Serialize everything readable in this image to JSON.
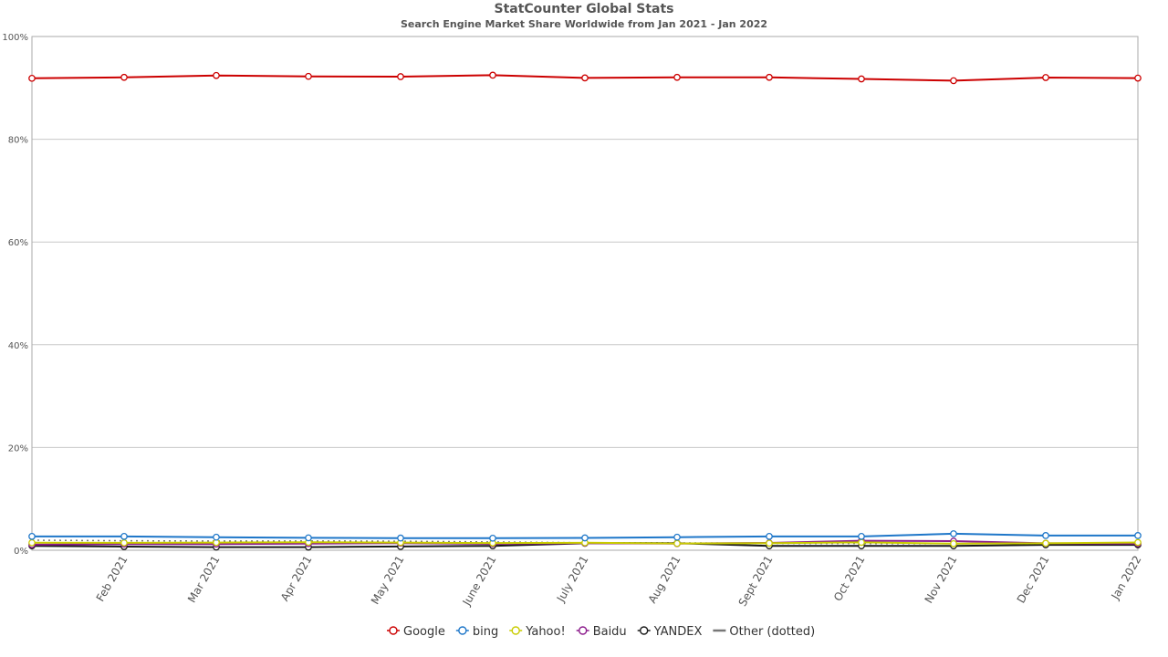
{
  "chart_data": {
    "type": "line",
    "title": "StatCounter Global Stats",
    "subtitle": "Search Engine Market Share Worldwide from Jan 2021 - Jan 2022",
    "x": [
      "Jan 2021",
      "Feb 2021",
      "Mar 2021",
      "Apr 2021",
      "May 2021",
      "June 2021",
      "July 2021",
      "Aug 2021",
      "Sept 2021",
      "Oct 2021",
      "Nov 2021",
      "Dec 2021",
      "Jan 2022"
    ],
    "x_tick_labels": [
      "",
      "Feb 2021",
      "Mar 2021",
      "Apr 2021",
      "May 2021",
      "June 2021",
      "July 2021",
      "Aug 2021",
      "Sept 2021",
      "Oct 2021",
      "Nov 2021",
      "Dec 2021",
      "Jan 2022"
    ],
    "y_ticks": [
      0,
      20,
      40,
      60,
      80,
      100
    ],
    "y_tick_labels": [
      "0%",
      "20%",
      "40%",
      "60%",
      "80%",
      "100%"
    ],
    "ylim": [
      0,
      100
    ],
    "grid": true,
    "legend_position": "bottom",
    "series": [
      {
        "name": "Google",
        "color": "#cc0000",
        "style": "solid",
        "markers": true,
        "values": [
          91.86,
          92.05,
          92.41,
          92.24,
          92.18,
          92.47,
          91.94,
          92.05,
          92.05,
          91.74,
          91.4,
          92.01,
          91.9
        ]
      },
      {
        "name": "bing",
        "color": "#1f77c9",
        "style": "solid",
        "markers": true,
        "values": [
          2.69,
          2.69,
          2.54,
          2.41,
          2.37,
          2.34,
          2.4,
          2.54,
          2.69,
          2.69,
          3.21,
          2.86,
          2.86
        ]
      },
      {
        "name": "Yahoo!",
        "color": "#c9cc00",
        "style": "solid",
        "markers": true,
        "values": [
          1.46,
          1.43,
          1.5,
          1.55,
          1.49,
          1.4,
          1.45,
          1.32,
          1.36,
          1.53,
          1.27,
          1.35,
          1.51
        ]
      },
      {
        "name": "Baidu",
        "color": "#8b1a8b",
        "style": "solid",
        "markers": true,
        "values": [
          1.09,
          1.2,
          1.2,
          1.29,
          1.38,
          1.25,
          1.38,
          1.29,
          1.42,
          1.85,
          1.77,
          1.35,
          1.28
        ]
      },
      {
        "name": "YANDEX",
        "color": "#1a1a1a",
        "style": "solid",
        "markers": true,
        "values": [
          0.85,
          0.71,
          0.61,
          0.6,
          0.72,
          0.86,
          1.36,
          1.36,
          0.85,
          0.85,
          0.85,
          1.05,
          1.05
        ]
      },
      {
        "name": "Other (dotted)",
        "color": "#777777",
        "style": "dotted",
        "markers": false,
        "values": [
          1.95,
          1.85,
          1.8,
          1.82,
          1.75,
          1.62,
          1.45,
          1.44,
          1.33,
          1.3,
          1.3,
          1.3,
          1.3
        ]
      }
    ]
  }
}
